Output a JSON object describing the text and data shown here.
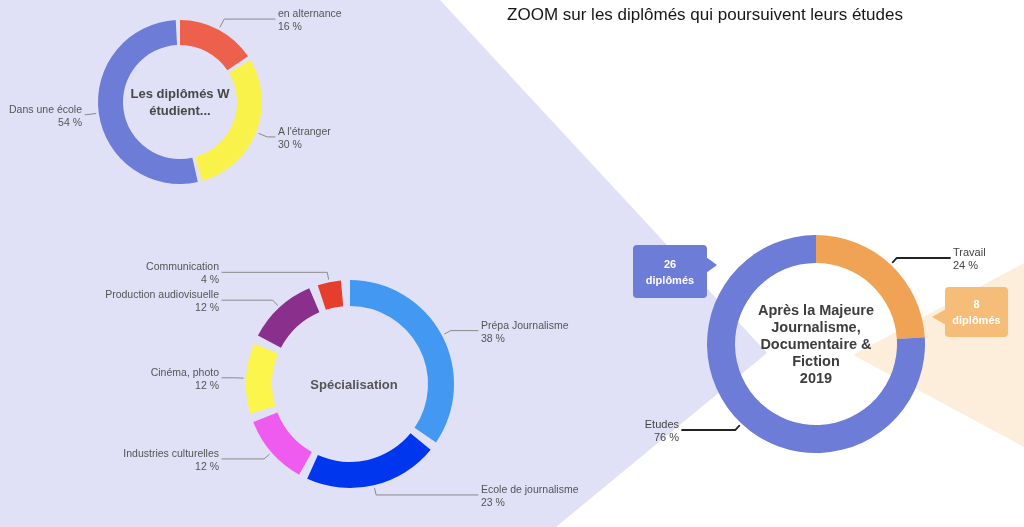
{
  "chart_data": [
    {
      "type": "donut",
      "title": "Les diplômés W\nétudient...",
      "categories": [
        "en alternance",
        "A l'étranger",
        "Dans une école"
      ],
      "values": [
        16,
        30,
        54
      ],
      "value_labels": [
        "16 %",
        "30 %",
        "54 %"
      ],
      "colors": [
        "#ec604c",
        "#f9f24b",
        "#6d7cd6"
      ],
      "annotations": [
        "ZOOM sur les diplômés qui poursuivent leurs études"
      ]
    },
    {
      "type": "donut",
      "title": "Spécialisation",
      "categories": [
        "Prépa Journalisme",
        "Ecole de journalisme",
        "Industries culturelles",
        "Cinéma, photo",
        "Production audiovisuelle",
        "Communication"
      ],
      "values": [
        38,
        23,
        12,
        12,
        12,
        4
      ],
      "value_labels": [
        "38 %",
        "23 %",
        "12 %",
        "12 %",
        "12 %",
        "4 %"
      ],
      "colors": [
        "#4399f1",
        "#0037ee",
        "#ee5bee",
        "#fbf54c",
        "#8a2f8b",
        "#e63e2c"
      ]
    },
    {
      "type": "donut",
      "title": "Après la Majeure\nJournalisme,\nDocumentaire &\nFiction\n2019",
      "categories": [
        "Travail",
        "Etudes"
      ],
      "values": [
        24,
        76
      ],
      "value_labels": [
        "24 %",
        "76 %"
      ],
      "colors": [
        "#f0a354",
        "#6d7cd6"
      ],
      "annotations": [
        "26 diplômés",
        "8 diplômés"
      ]
    }
  ]
}
